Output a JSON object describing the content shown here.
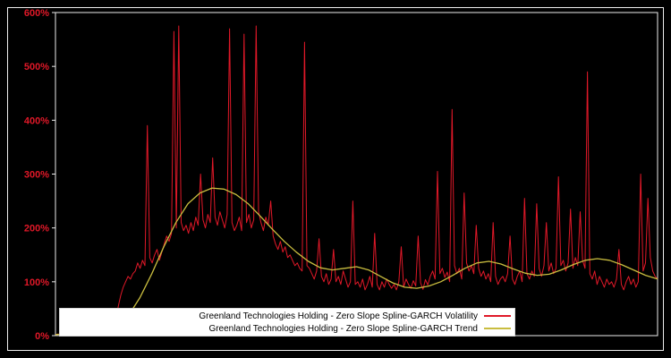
{
  "figure": {
    "background": "#000000",
    "frame_color": "#ededed"
  },
  "axis": {
    "tick_color": "#e01828",
    "y_ticks": [
      "0%",
      "100%",
      "200%",
      "300%",
      "400%",
      "500%",
      "600%"
    ]
  },
  "legend": {
    "items": [
      {
        "label": "Greenland Technologies Holding - Zero Slope Spline-GARCH Volatility",
        "color": "#e01828"
      },
      {
        "label": "Greenland Technologies Holding - Zero Slope Spline-GARCH Trend",
        "color": "#c9bd3f"
      }
    ]
  },
  "chart_data": {
    "type": "line",
    "title": "",
    "xlabel": "",
    "ylabel": "",
    "ylim": [
      0,
      600
    ],
    "x_range": [
      0,
      1
    ],
    "grid": false,
    "legend_position": "lower center",
    "y_tick_labels": [
      "0%",
      "100%",
      "200%",
      "300%",
      "400%",
      "500%",
      "600%"
    ],
    "series": [
      {
        "name": "Greenland Technologies Holding - Zero Slope Spline-GARCH Volatility",
        "color": "#e01828",
        "width": 1,
        "y_percent": [
          2,
          3,
          2,
          4,
          3,
          2,
          5,
          3,
          2,
          4,
          3,
          2,
          6,
          4,
          3,
          2,
          5,
          3,
          4,
          2,
          3,
          5,
          2,
          8,
          15,
          30,
          55,
          75,
          90,
          100,
          110,
          105,
          115,
          120,
          135,
          125,
          140,
          130,
          390,
          145,
          135,
          150,
          160,
          140,
          155,
          170,
          185,
          175,
          190,
          565,
          200,
          575,
          210,
          195,
          205,
          190,
          210,
          195,
          220,
          205,
          300,
          215,
          200,
          225,
          210,
          330,
          220,
          205,
          230,
          215,
          200,
          225,
          570,
          210,
          195,
          205,
          220,
          195,
          560,
          210,
          225,
          200,
          215,
          575,
          230,
          210,
          195,
          220,
          205,
          250,
          185,
          170,
          160,
          175,
          155,
          165,
          145,
          150,
          140,
          130,
          135,
          125,
          120,
          545,
          130,
          125,
          115,
          105,
          120,
          180,
          110,
          100,
          115,
          95,
          105,
          160,
          100,
          110,
          95,
          120,
          105,
          90,
          100,
          250,
          95,
          100,
          90,
          105,
          85,
          95,
          110,
          90,
          190,
          95,
          85,
          100,
          90,
          105,
          95,
          88,
          95,
          85,
          100,
          165,
          90,
          105,
          95,
          88,
          102,
          92,
          185,
          98,
          86,
          104,
          94,
          110,
          120,
          105,
          305,
          115,
          125,
          108,
          118,
          100,
          420,
          130,
          115,
          125,
          105,
          265,
          135,
          120,
          130,
          115,
          205,
          125,
          110,
          120,
          105,
          115,
          100,
          210,
          110,
          95,
          105,
          110,
          100,
          115,
          185,
          105,
          95,
          110,
          120,
          100,
          255,
          115,
          105,
          120,
          110,
          245,
          125,
          110,
          130,
          210,
          120,
          135,
          115,
          125,
          295,
          130,
          140,
          120,
          135,
          235,
          125,
          145,
          130,
          230,
          140,
          125,
          490,
          115,
          105,
          120,
          95,
          110,
          100,
          90,
          105,
          95,
          100,
          90,
          105,
          160,
          95,
          85,
          100,
          110,
          95,
          105,
          90,
          100,
          300,
          120,
          135,
          255,
          145,
          120,
          110,
          105
        ]
      },
      {
        "name": "Greenland Technologies Holding - Zero Slope Spline-GARCH Trend",
        "color": "#c9bd3f",
        "width": 1.3,
        "y_percent": [
          2,
          3,
          4,
          5,
          8,
          15,
          35,
          70,
          115,
          165,
          210,
          245,
          265,
          274,
          272,
          262,
          245,
          222,
          198,
          175,
          155,
          138,
          126,
          122,
          125,
          128,
          122,
          110,
          98,
          90,
          88,
          92,
          100,
          112,
          125,
          135,
          138,
          133,
          124,
          116,
          112,
          114,
          122,
          132,
          140,
          143,
          140,
          132,
          122,
          112,
          105
        ]
      }
    ]
  }
}
